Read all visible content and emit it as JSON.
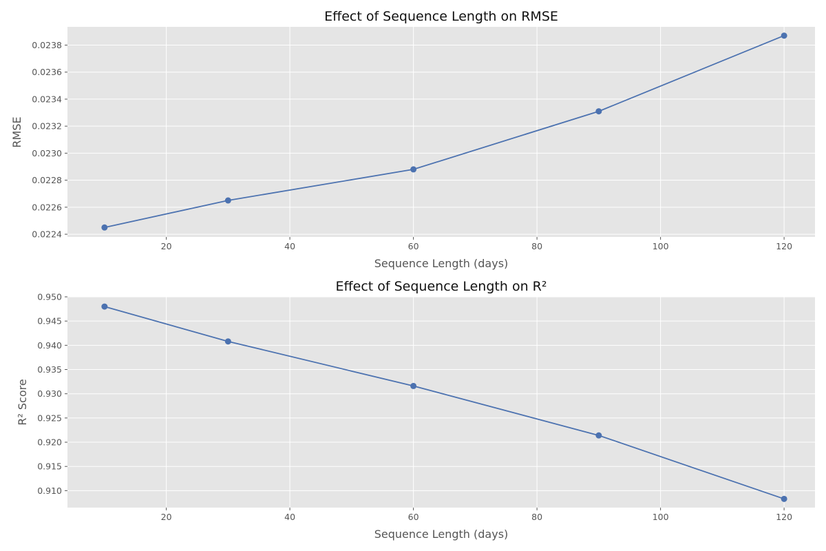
{
  "chart_data": [
    {
      "type": "line",
      "title": "Effect of Sequence Length on RMSE",
      "xlabel": "Sequence Length (days)",
      "ylabel": "RMSE",
      "x": [
        10,
        30,
        60,
        90,
        120
      ],
      "series": [
        {
          "values": [
            0.02245,
            0.02265,
            0.02288,
            0.02331,
            0.02387
          ],
          "color": "#4c72b0",
          "marker": "circle"
        }
      ],
      "xlim": [
        4,
        125
      ],
      "ylim": [
        0.02238,
        0.023935
      ],
      "xticks": [
        20,
        40,
        60,
        80,
        100,
        120
      ],
      "yticks": [
        0.0224,
        0.0226,
        0.0228,
        0.023,
        0.0232,
        0.0234,
        0.0236,
        0.0238
      ],
      "ytick_labels": [
        "0.0224",
        "0.0226",
        "0.0228",
        "0.0230",
        "0.0232",
        "0.0234",
        "0.0236",
        "0.0238"
      ],
      "grid": true,
      "background": "#e5e5e5"
    },
    {
      "type": "line",
      "title": "Effect of Sequence Length on R²",
      "xlabel": "Sequence Length (days)",
      "ylabel": "R² Score",
      "x": [
        10,
        30,
        60,
        90,
        120
      ],
      "series": [
        {
          "values": [
            0.948,
            0.9408,
            0.9316,
            0.9214,
            0.9083
          ],
          "color": "#4c72b0",
          "marker": "circle"
        }
      ],
      "xlim": [
        4,
        125
      ],
      "ylim": [
        0.9065,
        0.95
      ],
      "xticks": [
        20,
        40,
        60,
        80,
        100,
        120
      ],
      "yticks": [
        0.91,
        0.915,
        0.92,
        0.925,
        0.93,
        0.935,
        0.94,
        0.945,
        0.95
      ],
      "ytick_labels": [
        "0.910",
        "0.915",
        "0.920",
        "0.925",
        "0.930",
        "0.935",
        "0.940",
        "0.945",
        "0.950"
      ],
      "grid": true,
      "background": "#e5e5e5"
    }
  ]
}
